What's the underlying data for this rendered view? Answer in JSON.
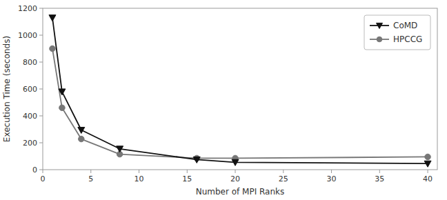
{
  "chart_data": {
    "type": "line",
    "xlabel": "Number of MPI Ranks",
    "ylabel": "Execution Time (seconds)",
    "x": [
      1,
      2,
      4,
      8,
      16,
      20,
      40
    ],
    "series": [
      {
        "name": "CoMD",
        "color": "#111111",
        "marker": "triangle-down",
        "values": [
          1130,
          580,
          295,
          155,
          75,
          55,
          45
        ]
      },
      {
        "name": "HPCCG",
        "color": "#777777",
        "marker": "circle",
        "values": [
          900,
          460,
          228,
          115,
          85,
          85,
          95
        ]
      }
    ],
    "xlim": [
      0,
      41
    ],
    "ylim": [
      0,
      1200
    ],
    "xticks": [
      0,
      5,
      10,
      15,
      20,
      25,
      30,
      35,
      40
    ],
    "yticks": [
      0,
      200,
      400,
      600,
      800,
      1000,
      1200
    ],
    "grid": false,
    "legend": "upper-right"
  }
}
